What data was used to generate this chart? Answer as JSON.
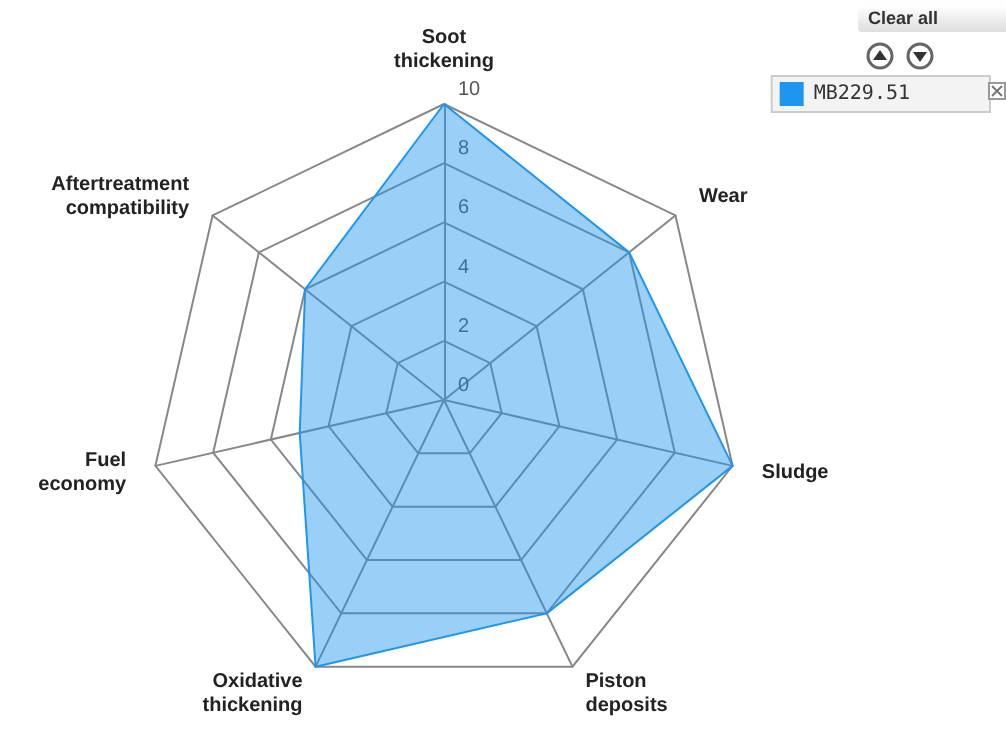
{
  "chart_data": {
    "type": "radar",
    "categories": [
      "Soot thickening",
      "Wear",
      "Sludge",
      "Piston deposits",
      "Oxidative thickening",
      "Fuel economy",
      "Aftertreatment compatibility"
    ],
    "series": [
      {
        "name": "MB229.51",
        "color": "#1e96f0",
        "values": [
          10,
          8,
          10,
          8,
          10,
          5,
          6
        ]
      }
    ],
    "ylim": [
      0,
      10
    ],
    "yticks": [
      0,
      2,
      4,
      6,
      8,
      10
    ],
    "legend": "top right",
    "annotations": [
      "Clear all"
    ]
  }
}
